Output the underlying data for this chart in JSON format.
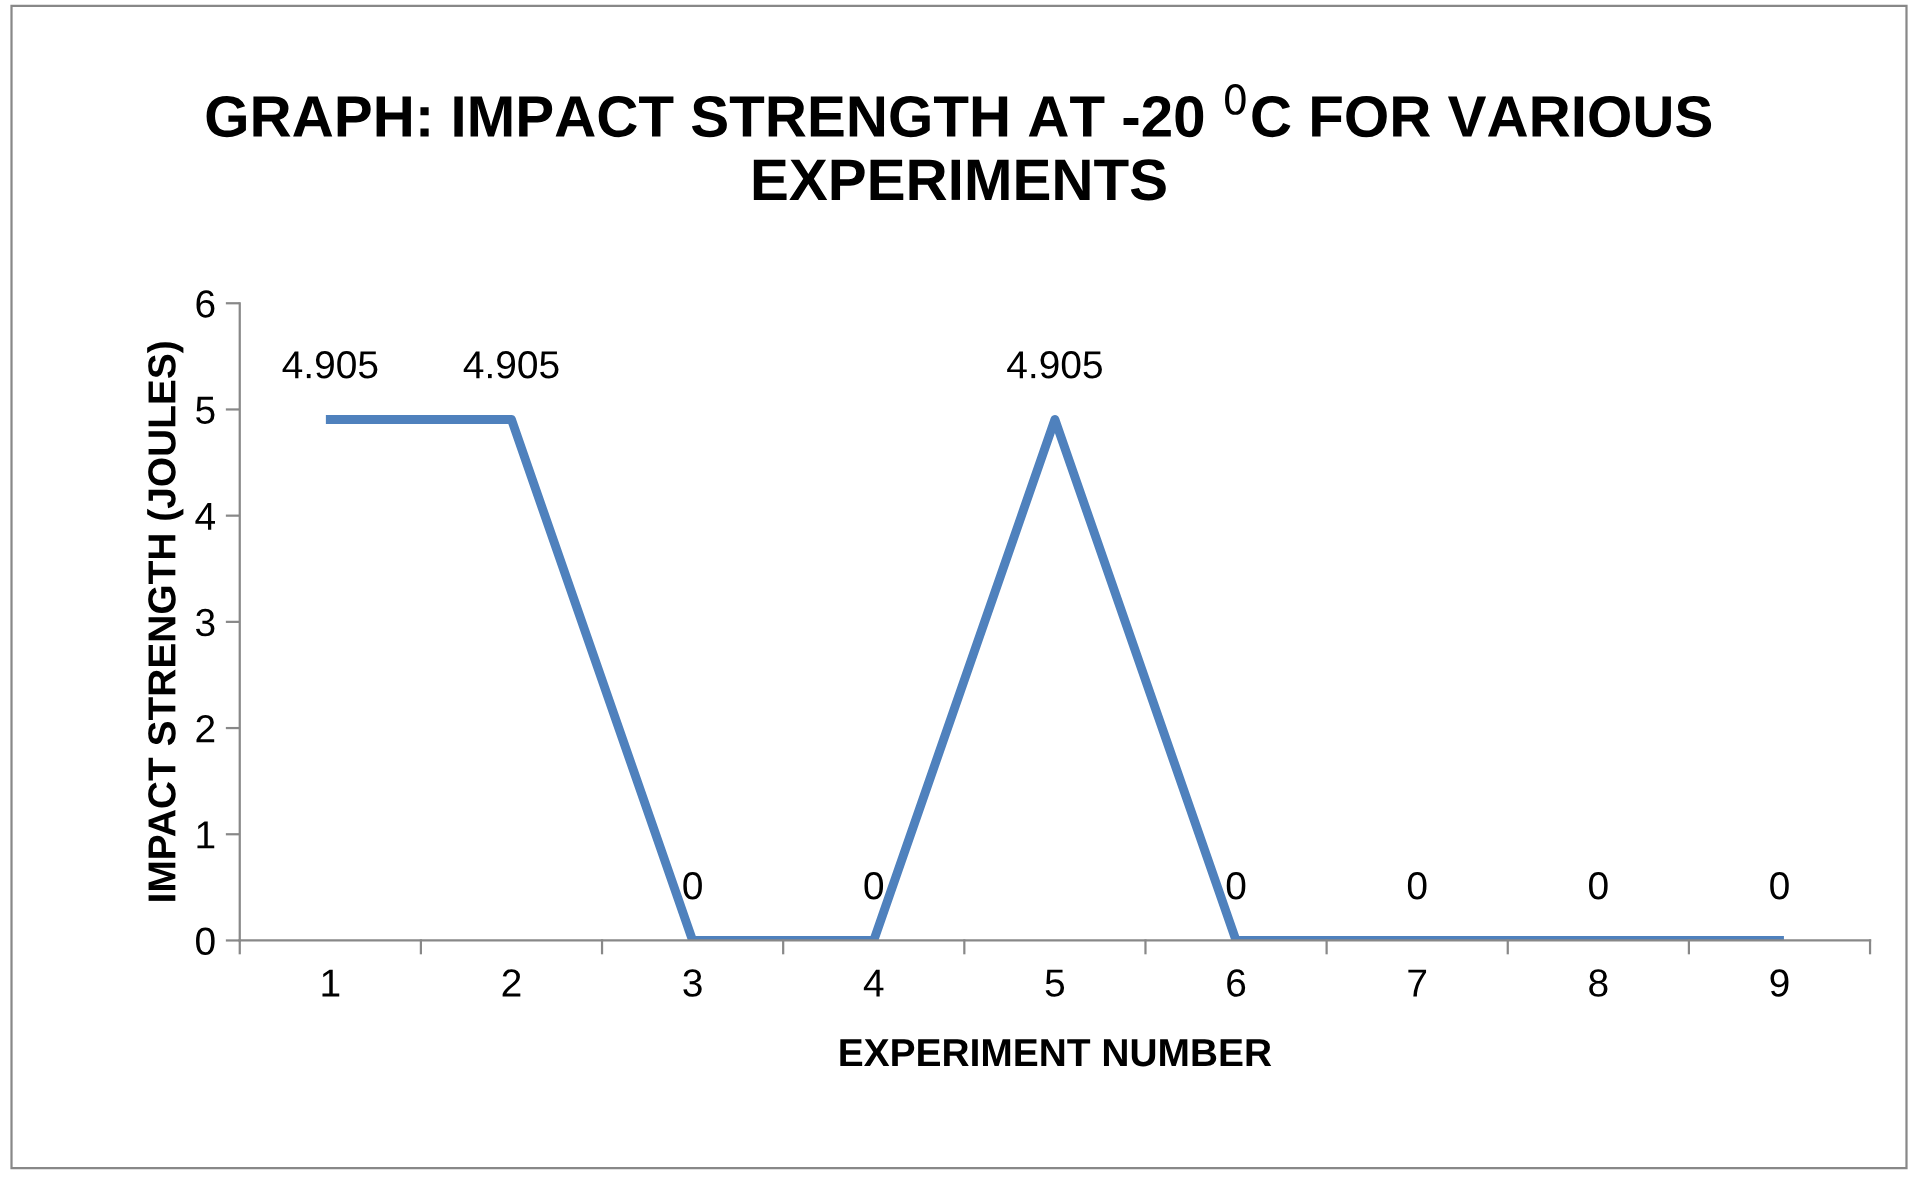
{
  "chart_data": {
    "type": "line",
    "title": "GRAPH: IMPACT STRENGTH AT -20 $^{0}$C FOR VARIOUS EXPERIMENTS",
    "xlabel": "EXPERIMENT NUMBER",
    "ylabel": "IMPACT STRENGTH (JOULES)",
    "categories": [
      "1",
      "2",
      "3",
      "4",
      "5",
      "6",
      "7",
      "8",
      "9"
    ],
    "series": [
      {
        "color": "#4f81bd",
        "values": [
          4.905,
          4.905,
          0,
          0,
          4.905,
          0,
          0,
          0,
          0
        ]
      }
    ],
    "ylim": [
      0,
      6
    ],
    "yticks": [
      0,
      1,
      2,
      3,
      4,
      5,
      6
    ],
    "data_labels": true,
    "grid": false,
    "legend": false,
    "marker": "none",
    "line_style": "solid"
  }
}
